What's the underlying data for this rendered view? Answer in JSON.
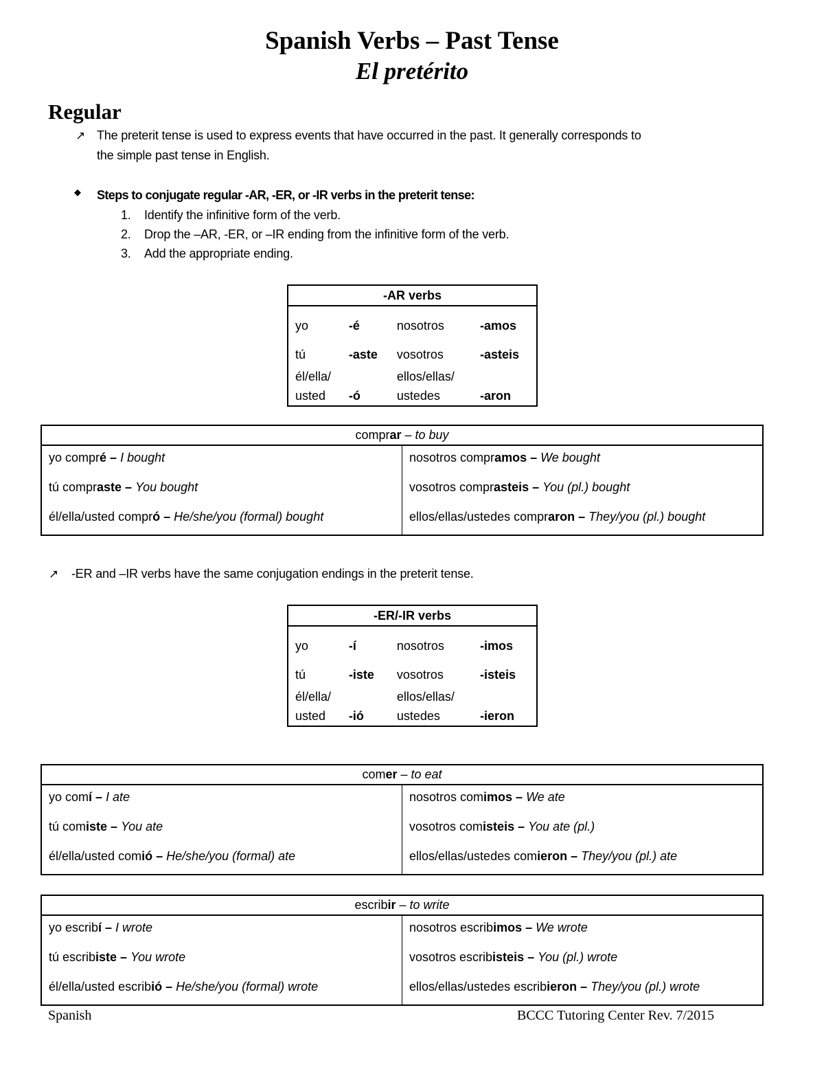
{
  "title": "Spanish Verbs – Past Tense",
  "subtitle": "El pretérito",
  "section_heading": "Regular",
  "intro": {
    "icon": "arrow-up-right-icon",
    "line1": "The preterit tense is used to express events that have occurred in the past.  It generally corresponds to",
    "line2": "the simple past tense in English."
  },
  "steps": {
    "icon": "diamond-bullet-icon",
    "heading": "Steps to conjugate regular -AR, -ER, or -IR verbs in the preterit tense:",
    "items": [
      {
        "num": "1.",
        "text": "Identify the infinitive form of the verb."
      },
      {
        "num": "2.",
        "text": "Drop the –AR, -ER, or –IR ending from the infinitive form of the verb."
      },
      {
        "num": "3.",
        "text": "Add the appropriate ending."
      }
    ]
  },
  "ar_endings": {
    "header": "-AR verbs",
    "rows": [
      [
        {
          "pro": "yo",
          "end": "-é"
        },
        {
          "pro": "nosotros",
          "end": "-amos"
        }
      ],
      [
        {
          "pro": "tú",
          "end": "-aste"
        },
        {
          "pro": "vosotros",
          "end": "-asteis"
        }
      ],
      [
        {
          "pro": "él/ella/\nusted",
          "end": "-ó"
        },
        {
          "pro": "ellos/ellas/\nustedes",
          "end": "-aron"
        }
      ]
    ]
  },
  "comprar": {
    "header": {
      "stem": "compr",
      "ending": "ar",
      "dash": " – ",
      "meaning": "to buy"
    },
    "rows": [
      [
        {
          "a": "yo compr",
          "b": "é – ",
          "c": "I bought"
        },
        {
          "a": "nosotros compr",
          "b": "amos – ",
          "c": "We bought"
        }
      ],
      [
        {
          "a": "tú compr",
          "b": "aste – ",
          "c": "You bought"
        },
        {
          "a": "vosotros compr",
          "b": "asteis – ",
          "c": "You (pl.) bought"
        }
      ],
      [
        {
          "a": "él/ella/usted compr",
          "b": "ó – ",
          "c": "He/she/you (formal) bought"
        },
        {
          "a": "ellos/ellas/ustedes compr",
          "b": "aron – ",
          "c": "They/you (pl.) bought"
        }
      ]
    ]
  },
  "er_ir_note": {
    "icon": "arrow-up-right-icon",
    "text": "-ER and –IR verbs have the same conjugation endings in the preterit tense."
  },
  "er_ir_endings": {
    "header": "-ER/-IR verbs",
    "rows": [
      [
        {
          "pro": "yo",
          "end": "-í"
        },
        {
          "pro": "nosotros",
          "end": "-imos"
        }
      ],
      [
        {
          "pro": "tú",
          "end": "-iste"
        },
        {
          "pro": "vosotros",
          "end": "-isteis"
        }
      ],
      [
        {
          "pro": "él/ella/\nusted",
          "end": "-ió"
        },
        {
          "pro": "ellos/ellas/\nustedes",
          "end": "-ieron"
        }
      ]
    ]
  },
  "comer": {
    "header": {
      "stem": "com",
      "ending": "er",
      "dash": " – ",
      "meaning": "to eat"
    },
    "rows": [
      [
        {
          "a": "yo com",
          "b": "í – ",
          "c": "I ate"
        },
        {
          "a": "nosotros com",
          "b": "imos – ",
          "c": "We ate"
        }
      ],
      [
        {
          "a": "tú com",
          "b": "iste – ",
          "c": "You ate"
        },
        {
          "a": "vosotros com",
          "b": "isteis – ",
          "c": "You ate (pl.)"
        }
      ],
      [
        {
          "a": "él/ella/usted com",
          "b": "ió – ",
          "c": "He/she/you (formal) ate"
        },
        {
          "a": "ellos/ellas/ustedes com",
          "b": "ieron – ",
          "c": "They/you (pl.) ate"
        }
      ]
    ]
  },
  "escribir": {
    "header": {
      "stem": "escrib",
      "ending": "ir",
      "dash": " – ",
      "meaning": "to write"
    },
    "rows": [
      [
        {
          "a": "yo escrib",
          "b": "í – ",
          "c": "I wrote"
        },
        {
          "a": "nosotros escrib",
          "b": "imos – ",
          "c": "We wrote"
        }
      ],
      [
        {
          "a": "tú escrib",
          "b": "iste – ",
          "c": "You wrote"
        },
        {
          "a": "vosotros escrib",
          "b": "isteis – ",
          "c": "You (pl.) wrote"
        }
      ],
      [
        {
          "a": "él/ella/usted escrib",
          "b": "ió – ",
          "c": "He/she/you (formal) wrote"
        },
        {
          "a": "ellos/ellas/ustedes escrib",
          "b": "ieron – ",
          "c": "They/you (pl.) wrote"
        }
      ]
    ]
  },
  "footer": {
    "left": "Spanish",
    "right": "BCCC Tutoring Center Rev. 7/2015"
  }
}
